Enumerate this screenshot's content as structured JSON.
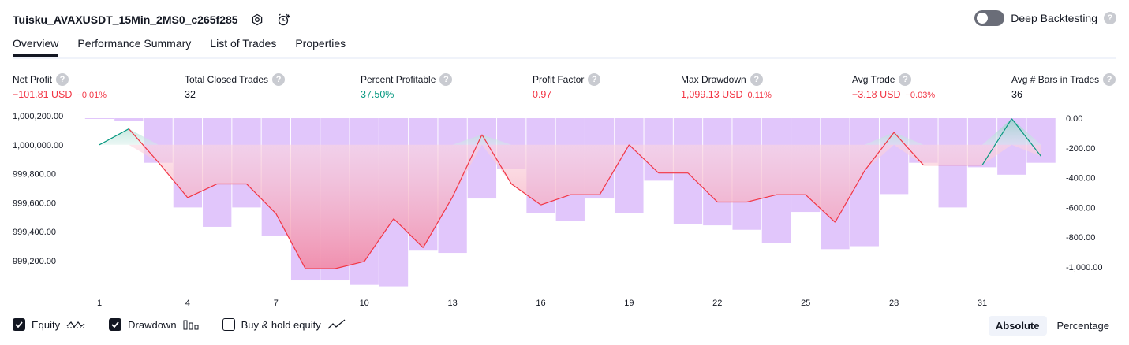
{
  "header": {
    "strategy_name": "Tuisku_AVAXUSDT_15Min_2MS0_c265f285",
    "deep_backtesting_label": "Deep Backtesting",
    "deep_backtesting_enabled": false,
    "help_glyph": "?"
  },
  "tabs": [
    {
      "label": "Overview",
      "active": true
    },
    {
      "label": "Performance Summary",
      "active": false
    },
    {
      "label": "List of Trades",
      "active": false
    },
    {
      "label": "Properties",
      "active": false
    }
  ],
  "metrics": {
    "net_profit": {
      "label": "Net Profit",
      "value": "−101.81 USD",
      "pct": "−0.01%"
    },
    "total_closed_trades": {
      "label": "Total Closed Trades",
      "value": "32"
    },
    "percent_profitable": {
      "label": "Percent Profitable",
      "value": "37.50%"
    },
    "profit_factor": {
      "label": "Profit Factor",
      "value": "0.97"
    },
    "max_drawdown": {
      "label": "Max Drawdown",
      "value": "1,099.13 USD",
      "pct": "0.11%"
    },
    "avg_trade": {
      "label": "Avg Trade",
      "value": "−3.18 USD",
      "pct": "−0.03%"
    },
    "avg_bars": {
      "label": "Avg # Bars in Trades",
      "value": "36"
    }
  },
  "colors": {
    "negative": "#f23645",
    "positive": "#089981",
    "drawdown_bar": "#e1c6fb",
    "equity_fill_neg": "#f7a1b3",
    "equity_fill_pos": "#b2dfd6"
  },
  "chart_data": {
    "type": "line",
    "x_ticks": [
      "1",
      "4",
      "7",
      "10",
      "13",
      "16",
      "19",
      "22",
      "25",
      "28",
      "31"
    ],
    "left_axis": {
      "ticks": [
        "1,000,200.00",
        "1,000,000.00",
        "999,800.00",
        "999,600.00",
        "999,400.00",
        "999,200.00"
      ],
      "values": [
        1000200,
        1000000,
        999800,
        999600,
        999400,
        999200
      ]
    },
    "right_axis": {
      "ticks": [
        "0.00",
        "-200.00",
        "-400.00",
        "-600.00",
        "-800.00",
        "-1,000.00"
      ],
      "values": [
        0,
        -200,
        -400,
        -600,
        -800,
        -1000
      ]
    },
    "series": [
      {
        "name": "Equity",
        "x": [
          1,
          2,
          3,
          4,
          5,
          6,
          7,
          8,
          9,
          10,
          11,
          12,
          13,
          14,
          15,
          16,
          17,
          18,
          19,
          20,
          21,
          22,
          23,
          24,
          25,
          26,
          27,
          28,
          29,
          30,
          31,
          32,
          33
        ],
        "values": [
          1000000,
          1000110,
          999880,
          999635,
          999730,
          999730,
          999525,
          999145,
          999145,
          999195,
          999490,
          999290,
          999640,
          1000070,
          999730,
          999585,
          999655,
          999655,
          1000000,
          999805,
          999805,
          999605,
          999605,
          999655,
          999655,
          999465,
          999820,
          1000085,
          999860,
          999860,
          999860,
          1000180,
          999920
        ]
      },
      {
        "name": "Drawdown",
        "x": [
          1,
          2,
          3,
          4,
          5,
          6,
          7,
          8,
          9,
          10,
          11,
          12,
          13,
          14,
          15,
          16,
          17,
          18,
          19,
          20,
          21,
          22,
          23,
          24,
          25,
          26,
          27,
          28,
          29,
          30,
          31,
          32,
          33
        ],
        "values": [
          -5,
          -20,
          -300,
          -600,
          -730,
          -600,
          -790,
          -1090,
          -1090,
          -1120,
          -1130,
          -890,
          -905,
          -540,
          -340,
          -640,
          -690,
          -540,
          -640,
          -420,
          -710,
          -720,
          -750,
          -840,
          -630,
          -880,
          -860,
          -510,
          -300,
          -600,
          -330,
          -380,
          -300
        ]
      }
    ],
    "legend": [
      "Equity",
      "Drawdown",
      "Buy & hold equity"
    ],
    "legend_checked": [
      true,
      true,
      false
    ]
  },
  "view_mode": {
    "options": [
      "Absolute",
      "Percentage"
    ],
    "selected": "Absolute"
  }
}
